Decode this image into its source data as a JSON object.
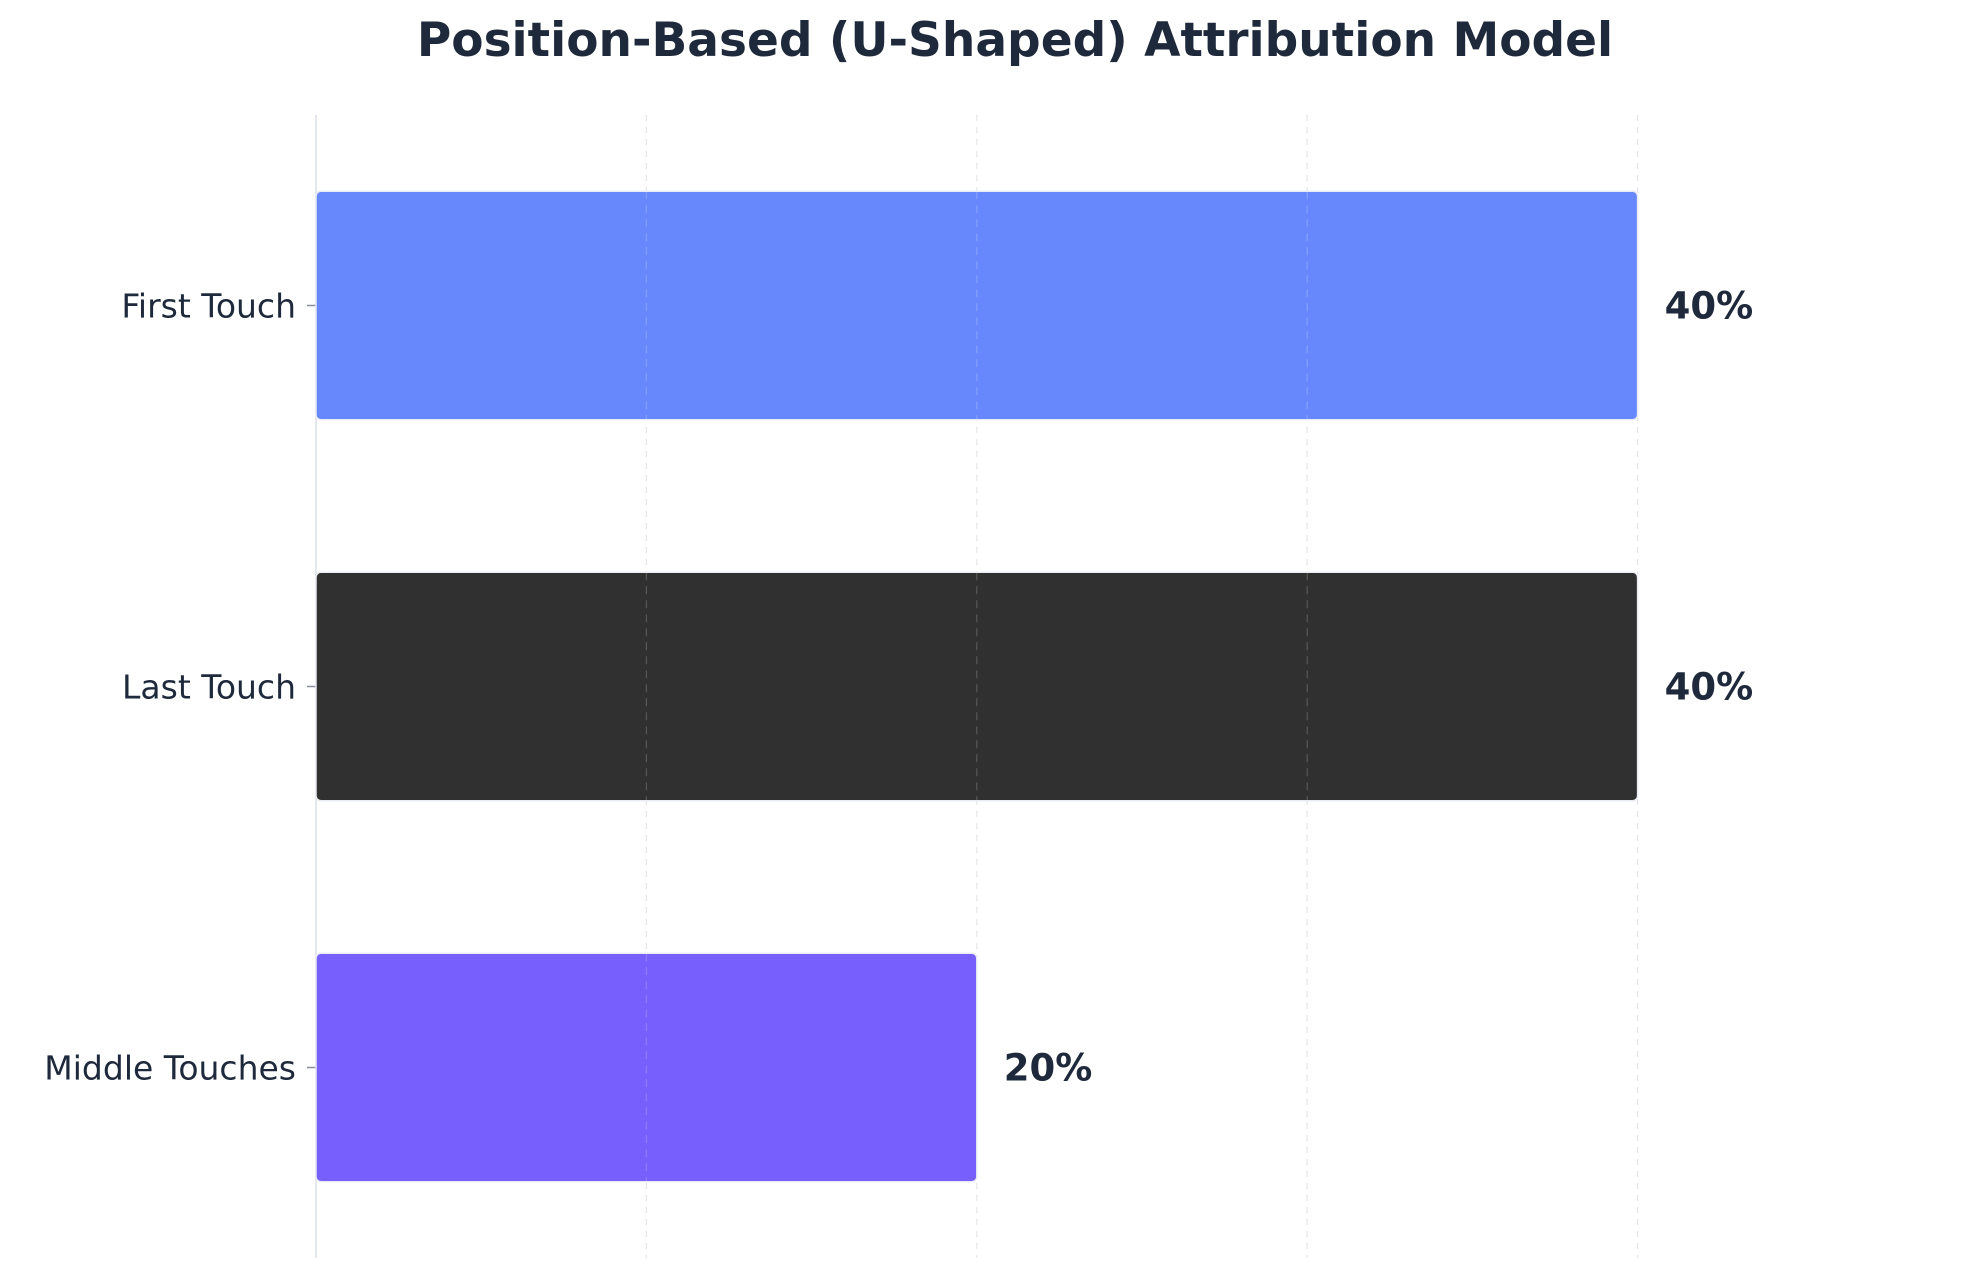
{
  "chart_data": {
    "type": "bar",
    "orientation": "horizontal",
    "title": "Position-Based (U-Shaped) Attribution Model",
    "xlabel": "",
    "ylabel": "",
    "categories": [
      "First Touch",
      "Last Touch",
      "Middle Touches"
    ],
    "values": [
      40,
      40,
      20
    ],
    "value_labels": [
      "40%",
      "40%",
      "20%"
    ],
    "colors": [
      "#6788fd",
      "#303030",
      "#775ffe"
    ],
    "xlim": [
      0,
      50
    ],
    "x_gridlines": [
      10,
      20,
      30,
      40
    ],
    "grid": "vertical dashed",
    "legend": "none",
    "x_tick_labels_shown": false
  }
}
